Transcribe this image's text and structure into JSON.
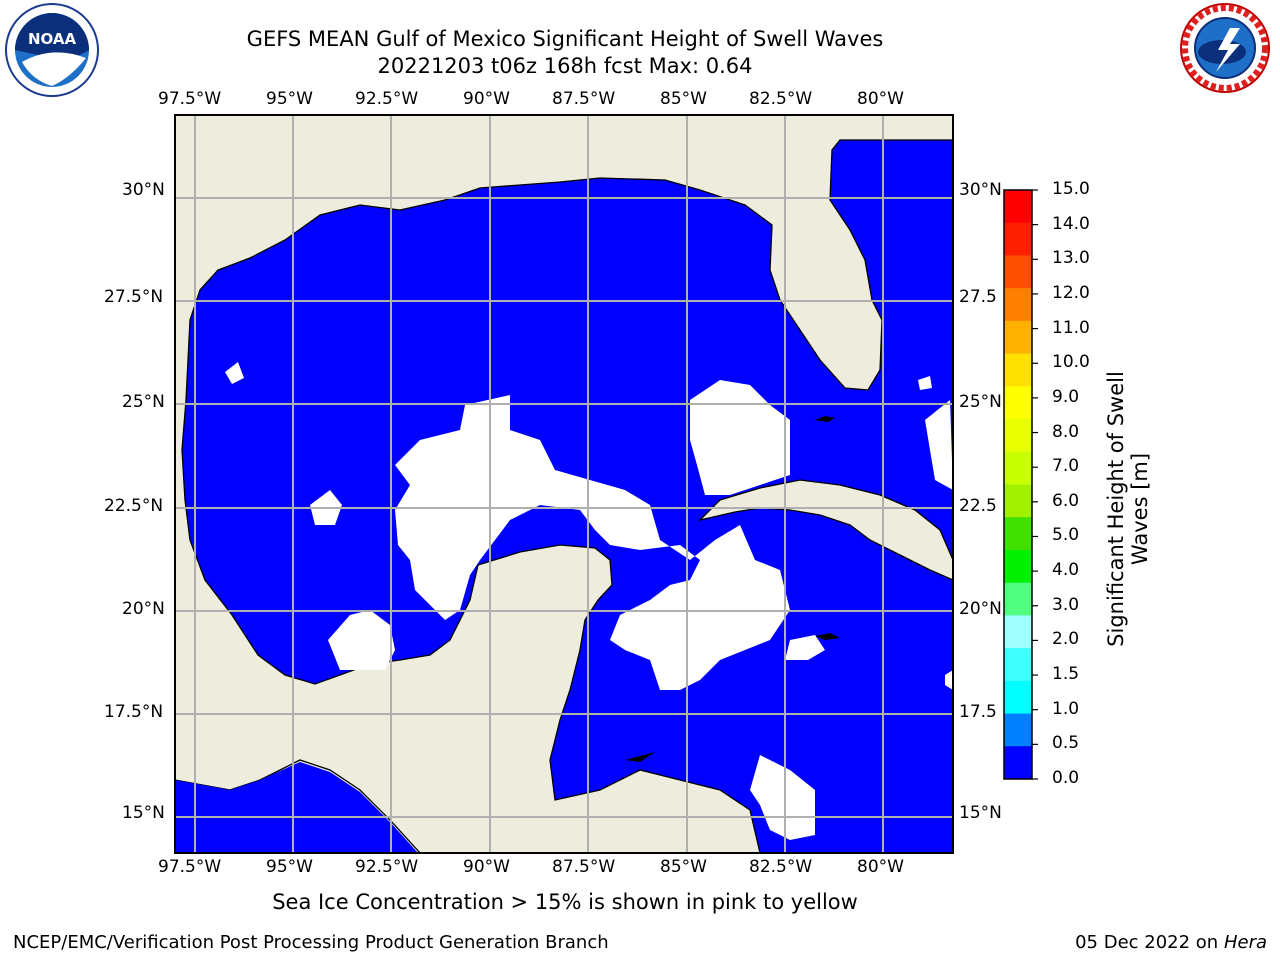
{
  "title_line1": "GEFS MEAN Gulf of Mexico Significant Height of Swell Waves",
  "title_line2": "20221203 t06z 168h fcst   Max: 0.64",
  "logos": {
    "left": "noaa-logo",
    "left_text": "NOAA",
    "left_ring_text": "NATIONAL OCEANIC AND ATMOSPHERIC ADMINISTRATION · U.S. DEPARTMENT OF COMMERCE",
    "right": "nws-logo",
    "right_ring_text": "NATIONAL WEATHER SERVICE"
  },
  "map": {
    "lon_labels": [
      "97.5°W",
      "95°W",
      "92.5°W",
      "90°W",
      "87.5°W",
      "85°W",
      "82.5°W",
      "80°W"
    ],
    "lat_labels": [
      "30°N",
      "27.5°N",
      "25°N",
      "22.5°N",
      "20°N",
      "17.5°N",
      "15°N"
    ],
    "lon_labels_right": [
      "30°N",
      "27.5",
      "25°N",
      "22.5",
      "20°N",
      "17.5",
      "15°N"
    ],
    "extent": {
      "lon_min": -98,
      "lon_max": -78,
      "lat_min": 14,
      "lat_max": 32
    },
    "ocean_color": "#0000ff",
    "land_color": "#eeecdc",
    "nodata_color": "#ffffff",
    "grid_color": "#b0b0b0"
  },
  "colorbar": {
    "title": "Significant Height of Swell Waves [m]",
    "ticks": [
      "15.0",
      "14.0",
      "13.0",
      "12.0",
      "11.0",
      "10.0",
      "9.0",
      "8.0",
      "7.0",
      "6.0",
      "5.0",
      "4.0",
      "3.0",
      "2.0",
      "1.5",
      "1.0",
      "0.5",
      "0.0"
    ],
    "colors": [
      "#ff0000",
      "#ff2000",
      "#ff5000",
      "#ff8000",
      "#ffb000",
      "#ffe000",
      "#ffff00",
      "#e8ff00",
      "#c8ff00",
      "#a0f000",
      "#40e000",
      "#00f000",
      "#50ff80",
      "#a0ffff",
      "#40ffff",
      "#00ffff",
      "#0080ff",
      "#0000ff"
    ]
  },
  "note": "Sea Ice Concentration > 15% is shown in pink to yellow",
  "footer_left": "NCEP/EMC/Verification Post Processing Product Generation Branch",
  "footer_date": "05 Dec 2022 on",
  "footer_host": "Hera"
}
